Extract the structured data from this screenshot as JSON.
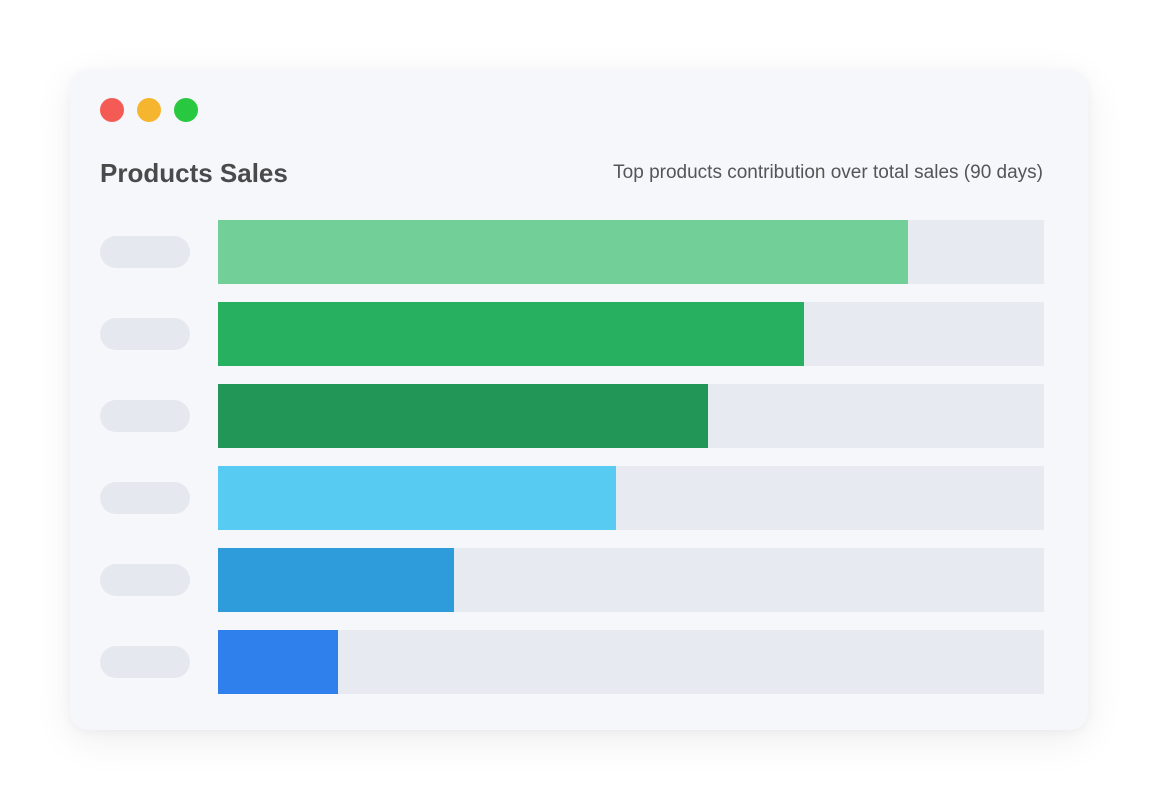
{
  "window": {
    "controls": [
      {
        "name": "close",
        "color": "#f45b55"
      },
      {
        "name": "minimize",
        "color": "#f5b52e"
      },
      {
        "name": "maximize",
        "color": "#28c940"
      }
    ]
  },
  "chart_data": {
    "type": "bar",
    "orientation": "horizontal",
    "title": "Products Sales",
    "subtitle": "Top products contribution over total sales (90 days)",
    "xlim": [
      0,
      1
    ],
    "grid": false,
    "values": [
      0.835,
      0.71,
      0.593,
      0.482,
      0.286,
      0.145
    ],
    "colors": [
      "#72cf97",
      "#27b060",
      "#229656",
      "#57cbf2",
      "#2e9bdb",
      "#2f80ec"
    ],
    "track_color": "#e8eaf2",
    "label_placeholder_color": "#e6e8ef"
  }
}
